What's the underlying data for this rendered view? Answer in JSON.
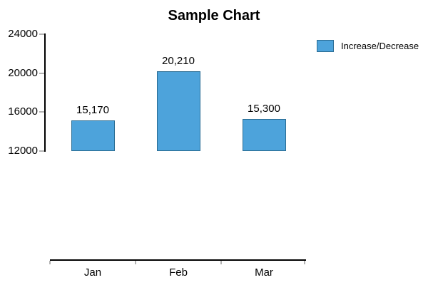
{
  "title": "Sample Chart",
  "legend": {
    "label": "Increase/Decrease"
  },
  "colors": {
    "background": "#ffffff",
    "bar_fill": "#4DA3DB",
    "bar_border": "#2B6D94",
    "axis_line": "#000000",
    "tick": "#b3b3b3",
    "text": "#000000"
  },
  "chart_data": {
    "type": "bar",
    "title": "Sample Chart",
    "categories": [
      "Jan",
      "Feb",
      "Mar"
    ],
    "series": [
      {
        "name": "Increase/Decrease",
        "values": [
          15170,
          20210,
          15300
        ]
      }
    ],
    "value_labels": [
      "15,170",
      "20,210",
      "15,300"
    ],
    "y_tick_labels": [
      "24000",
      "20000",
      "16000",
      "12000"
    ],
    "y_tick_values": [
      24000,
      20000,
      16000,
      12000
    ],
    "ylim": [
      12000,
      24000
    ],
    "xlabel": "",
    "ylabel": "",
    "grid": false,
    "legend_position": "top-right"
  }
}
